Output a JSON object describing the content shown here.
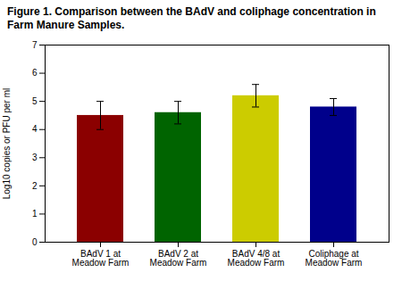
{
  "chart_data": {
    "type": "bar",
    "title": "Figure 1. Comparison between the BAdV and coliphage concentration in Farm Manure Samples.",
    "categories": [
      "BAdV 1 at\nMeadow Farm",
      "BAdV 2 at\nMeadow Farm",
      "BAdV 4/8 at\nMeadow Farm",
      "Coliphage at\nMeadow Farm"
    ],
    "values": [
      4.5,
      4.6,
      5.2,
      4.8
    ],
    "errors": [
      0.5,
      0.4,
      0.4,
      0.3
    ],
    "colors": [
      "#8b0000",
      "#006400",
      "#cccc00",
      "#00008b"
    ],
    "ylabel": "Log10 copies or PFU per ml",
    "ylim": [
      0,
      7
    ],
    "yticks": [
      0,
      1,
      2,
      3,
      4,
      5,
      6,
      7
    ],
    "grid": false
  }
}
